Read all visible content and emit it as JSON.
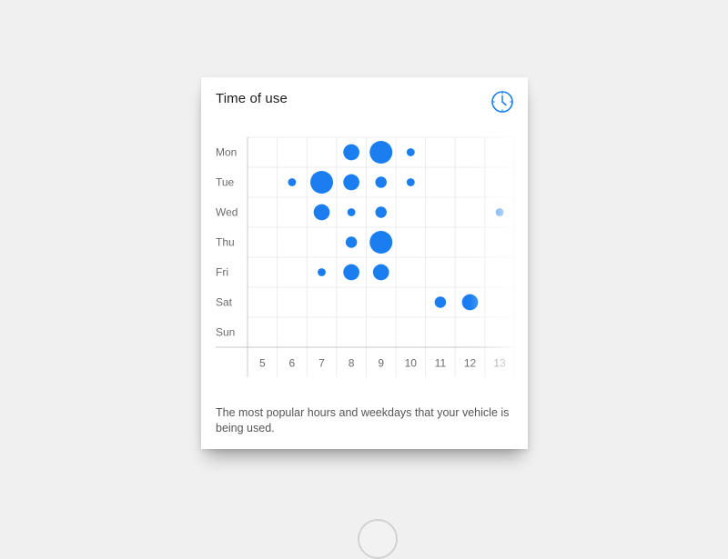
{
  "card": {
    "title": "Time of use",
    "caption": "The most popular hours and weekdays that your vehicle is being used."
  },
  "icons": {
    "clock": "clock-icon",
    "home": "home-button"
  },
  "colors": {
    "accent": "#1a7ef0",
    "grid": "#ececec",
    "axis": "#c8c8c8",
    "tick_text": "#6b6b6b"
  },
  "chart_data": {
    "type": "scatter",
    "title": "Time of use",
    "xlabel": "",
    "ylabel": "",
    "x_categories": [
      "5",
      "6",
      "7",
      "8",
      "9",
      "10",
      "11",
      "12",
      "13"
    ],
    "y_categories": [
      "Mon",
      "Tue",
      "Wed",
      "Thu",
      "Fri",
      "Sat",
      "Sun"
    ],
    "size_scale_max": 4,
    "points": [
      {
        "day": "Mon",
        "hour": "8",
        "value": 2
      },
      {
        "day": "Mon",
        "hour": "9",
        "value": 4
      },
      {
        "day": "Mon",
        "hour": "10",
        "value": 0.5
      },
      {
        "day": "Tue",
        "hour": "6",
        "value": 0.5
      },
      {
        "day": "Tue",
        "hour": "7",
        "value": 4
      },
      {
        "day": "Tue",
        "hour": "8",
        "value": 2
      },
      {
        "day": "Tue",
        "hour": "9",
        "value": 1
      },
      {
        "day": "Tue",
        "hour": "10",
        "value": 0.5
      },
      {
        "day": "Wed",
        "hour": "7",
        "value": 2
      },
      {
        "day": "Wed",
        "hour": "8",
        "value": 0.5
      },
      {
        "day": "Wed",
        "hour": "9",
        "value": 1
      },
      {
        "day": "Wed",
        "hour": "13",
        "value": 0.5
      },
      {
        "day": "Thu",
        "hour": "8",
        "value": 1
      },
      {
        "day": "Thu",
        "hour": "9",
        "value": 4
      },
      {
        "day": "Fri",
        "hour": "7",
        "value": 0.5
      },
      {
        "day": "Fri",
        "hour": "8",
        "value": 2
      },
      {
        "day": "Fri",
        "hour": "9",
        "value": 2
      },
      {
        "day": "Sat",
        "hour": "11",
        "value": 1
      },
      {
        "day": "Sat",
        "hour": "12",
        "value": 2
      }
    ],
    "grid": true,
    "legend": "none"
  }
}
